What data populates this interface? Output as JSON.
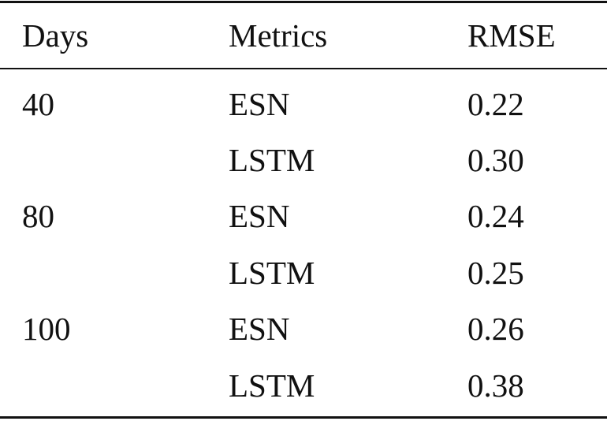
{
  "table": {
    "headers": [
      "Days",
      "Metrics",
      "RMSE"
    ],
    "rows": [
      {
        "days": "40",
        "metric": "ESN",
        "rmse": "0.22"
      },
      {
        "days": "",
        "metric": "LSTM",
        "rmse": "0.30"
      },
      {
        "days": "80",
        "metric": "ESN",
        "rmse": "0.24"
      },
      {
        "days": "",
        "metric": "LSTM",
        "rmse": "0.25"
      },
      {
        "days": "100",
        "metric": "ESN",
        "rmse": "0.26"
      },
      {
        "days": "",
        "metric": "LSTM",
        "rmse": "0.38"
      }
    ]
  }
}
